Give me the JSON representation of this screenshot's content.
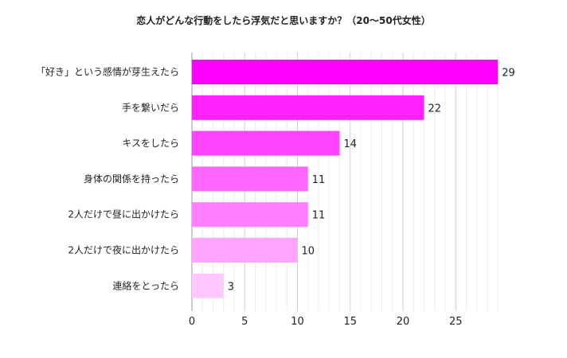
{
  "chart_data": {
    "type": "bar",
    "orientation": "horizontal",
    "title": "恋人がどんな行動をしたら浮気だと思いますか？（20〜50代女性）",
    "categories": [
      "「好き」という感情が芽生えたら",
      "手を繋いだら",
      "キスをしたら",
      "身体の関係を持ったら",
      "2人だけで昼に出かけたら",
      "2人だけで夜に出かけたら",
      "連絡をとったら"
    ],
    "values": [
      29,
      22,
      14,
      11,
      11,
      10,
      3
    ],
    "colors": [
      "#ff00ff",
      "#ff22ff",
      "#ff44ff",
      "#ff66ff",
      "#ff7fff",
      "#ffa4ff",
      "#ffc6ff"
    ],
    "xticks": [
      0,
      5,
      10,
      15,
      20,
      25
    ],
    "xlim": [
      0,
      29
    ],
    "xlabel": "",
    "ylabel": "",
    "grid": true,
    "legend": "none"
  }
}
